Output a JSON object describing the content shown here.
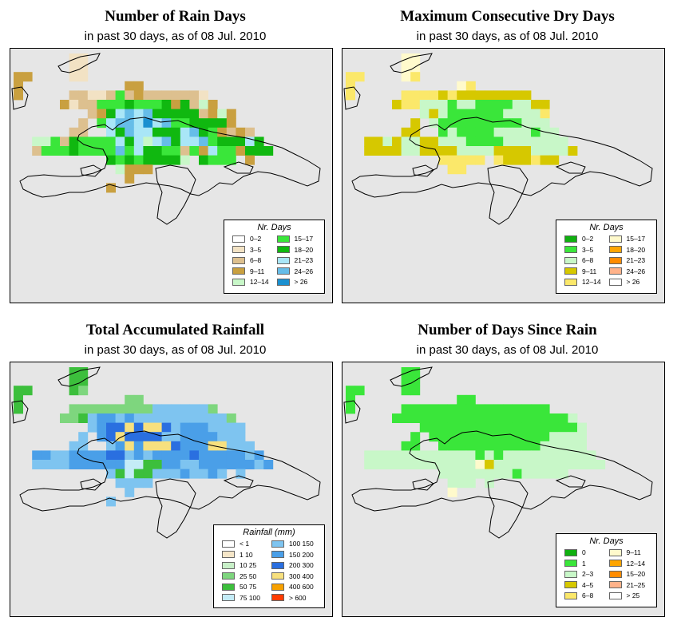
{
  "panels": [
    {
      "title": "Number of Rain Days",
      "subtitle": "in past 30 days, as of  08 Jul. 2010",
      "legend_title": "Nr. Days",
      "legend": [
        {
          "label": "0–2",
          "color": "#ffffff"
        },
        {
          "label": "3–5",
          "color": "#f2e2c4"
        },
        {
          "label": "6–8",
          "color": "#ddc08f"
        },
        {
          "label": "9–11",
          "color": "#c9a040"
        },
        {
          "label": "12–14",
          "color": "#c8f7c8"
        },
        {
          "label": "15–17",
          "color": "#3ae63a"
        },
        {
          "label": "18–20",
          "color": "#10b810"
        },
        {
          "label": "21–23",
          "color": "#a9e6f7"
        },
        {
          "label": "24–26",
          "color": "#66bde8"
        },
        {
          "label": "> 26",
          "color": "#1a90d0"
        }
      ],
      "grid": [
        "......11..........................",
        "......11..........................",
        "33....11..........................",
        "3...........33....................",
        "3.....221125232222221.............",
        ".....31225556555636243............",
        "........2367878666662343..........",
        ".......2.578879785566663..........",
        "......22..7687766678653232........",
        "..4452655557674786778566676.......",
        "..25556555585766552537553666......",
        "..........656566664.6555.3........",
        "...........4333...................",
        "............3.....................",
        "..........3.......................",
        "................................."
      ]
    },
    {
      "title": "Maximum Consecutive Dry Days",
      "subtitle": "in past 30 days, as of  08 Jul. 2010",
      "legend_title": "Nr. Days",
      "legend": [
        {
          "label": "0–2",
          "color": "#10b010"
        },
        {
          "label": "3–5",
          "color": "#3ae63a"
        },
        {
          "label": "6–8",
          "color": "#c8f7c8"
        },
        {
          "label": "9–11",
          "color": "#d6c800"
        },
        {
          "label": "12–14",
          "color": "#fbe86a"
        },
        {
          "label": "15–17",
          "color": "#fffacc"
        },
        {
          "label": "18–20",
          "color": "#ffa500"
        },
        {
          "label": "21–23",
          "color": "#ff8c00"
        },
        {
          "label": "24–26",
          "color": "#ffb28a"
        },
        {
          "label": "> 26",
          "color": "#ffffff"
        }
      ],
      "grid": [
        "......55..........................",
        "......55..........................",
        "44....54..........................",
        "4...........54....................",
        "4.....44443433333333..............",
        ".....34422212211112233............",
        "........23211111122224............",
        ".......3.2111111111222............",
        "......33..1211112222122...........",
        "..3323223322211112222222..........",
        "..33332233332222333322223.........",
        "..........44444.4333433...........",
        "...........44.....................",
        "..................................",
        "................................."
      ]
    },
    {
      "title": "Total Accumulated Rainfall",
      "subtitle": "in past 30 days, as of  08 Jul. 2010",
      "legend_title": "Rainfall (mm)",
      "legend": [
        {
          "label": "< 1",
          "color": "#ffffff"
        },
        {
          "label": "1   10",
          "color": "#f5e6c8"
        },
        {
          "label": "10   25",
          "color": "#c8f0c8"
        },
        {
          "label": "25   50",
          "color": "#7ed67e"
        },
        {
          "label": "50   75",
          "color": "#3cbf3c"
        },
        {
          "label": "75   100",
          "color": "#c4ecf7"
        },
        {
          "label": "100   150",
          "color": "#7ec4f0"
        },
        {
          "label": "150   200",
          "color": "#4a9fe8"
        },
        {
          "label": "200   300",
          "color": "#2a6fe0"
        },
        {
          "label": "300   400",
          "color": "#f7e07e"
        },
        {
          "label": "400   600",
          "color": "#f7a000"
        },
        {
          "label": "> 600",
          "color": "#ff3c00"
        }
      ],
      "grid": [
        "......44..........................",
        "......44..........................",
        "44....43..........................",
        "4...........33....................",
        "4.....3333333336666663............",
        ".....3346776766666666663..........",
        "........67889899867776666.........",
        ".......6.7898888667777666.........",
        "......66..6797999877799666........",
        "..7766777788676777787777767.......",
        "..66667777775544776677777767......",
        "..........6454466676676.6.........",
        "...........6666...................",
        "............6.....................",
        "..........6.......................",
        "................................."
      ]
    },
    {
      "title": "Number of Days Since Rain",
      "subtitle": "in past 30 days, as of  08 Jul. 2010",
      "legend_title": "Nr. Days",
      "legend": [
        {
          "label": "0",
          "color": "#10b010"
        },
        {
          "label": "1",
          "color": "#3ae63a"
        },
        {
          "label": "2–3",
          "color": "#c8f7c8"
        },
        {
          "label": "4–5",
          "color": "#d6c800"
        },
        {
          "label": "6–8",
          "color": "#fbe86a"
        },
        {
          "label": "9–11",
          "color": "#fffacc"
        },
        {
          "label": "12–14",
          "color": "#ffa500"
        },
        {
          "label": "15–20",
          "color": "#ff8c00"
        },
        {
          "label": "21–25",
          "color": "#ffb28a"
        },
        {
          "label": "> 25",
          "color": "#ffffff"
        }
      ],
      "grid": [
        "......11..........................",
        "......11..........................",
        "11....11..........................",
        "1...........11....................",
        "1.....1111111111111111............",
        ".....11111111111111111112.........",
        "........111111111111111112........",
        ".......1.11111111111112222........",
        "......11..1111111111122222........",
        "..2222222222221212222222222.......",
        "..22222222222253222222222222......",
        "..........22222222122222..........",
        "...........222.2..................",
        "...........5......................",
        "................................."
      ]
    }
  ]
}
